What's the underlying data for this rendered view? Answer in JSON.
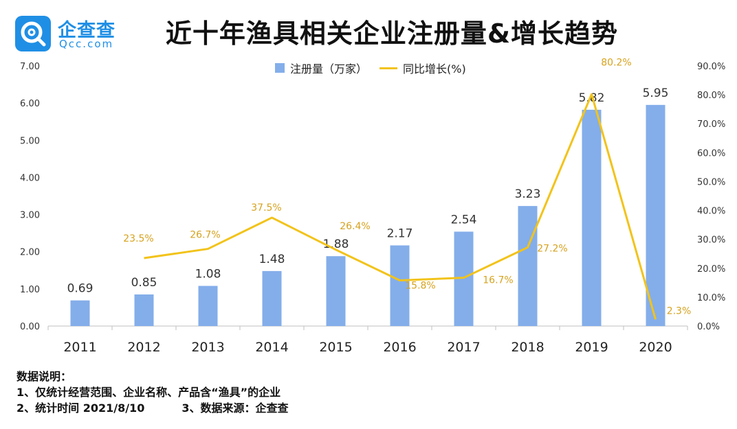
{
  "brand": {
    "name": "企查查",
    "domain": "Qcc.com",
    "color": "#1f8fe5"
  },
  "title": "近十年渔具相关企业注册量&增长趋势",
  "legend": {
    "bar_label": "注册量（万家）",
    "line_label": "同比增长(%)"
  },
  "chart_data": {
    "type": "bar",
    "categories": [
      "2011",
      "2012",
      "2013",
      "2014",
      "2015",
      "2016",
      "2017",
      "2018",
      "2019",
      "2020"
    ],
    "series": [
      {
        "name": "注册量（万家）",
        "type": "bar",
        "axis": "left",
        "color": "#84aeea",
        "values": [
          0.69,
          0.85,
          1.08,
          1.48,
          1.88,
          2.17,
          2.54,
          3.23,
          5.82,
          5.95
        ],
        "labels": [
          "0.69",
          "0.85",
          "1.08",
          "1.48",
          "1.88",
          "2.17",
          "2.54",
          "3.23",
          "5.82",
          "5.95"
        ]
      },
      {
        "name": "同比增长(%)",
        "type": "line",
        "axis": "right",
        "color": "#f2c31a",
        "values": [
          null,
          23.5,
          26.7,
          37.5,
          26.4,
          15.8,
          16.7,
          27.2,
          80.2,
          2.3
        ],
        "labels": [
          "",
          "23.5%",
          "26.7%",
          "37.5%",
          "26.4%",
          "15.8%",
          "16.7%",
          "27.2%",
          "80.2%",
          "2.3%"
        ]
      }
    ],
    "y_left": {
      "range": [
        0,
        7
      ],
      "ticks": [
        "0.00",
        "1.00",
        "2.00",
        "3.00",
        "4.00",
        "5.00",
        "6.00",
        "7.00"
      ]
    },
    "y_right": {
      "range": [
        0,
        90
      ],
      "ticks": [
        "0.0%",
        "10.0%",
        "20.0%",
        "30.0%",
        "40.0%",
        "50.0%",
        "60.0%",
        "70.0%",
        "80.0%",
        "90.0%"
      ]
    },
    "grid": false,
    "legend_position": "top-center",
    "label_color_line": "#d6a21e"
  },
  "notes": {
    "heading": "数据说明：",
    "line1": "1、仅统计经营范围、企业名称、产品含“渔具”的企业",
    "line2a": "2、统计时间 2021/8/10",
    "line2b": "3、数据来源：企查查"
  }
}
